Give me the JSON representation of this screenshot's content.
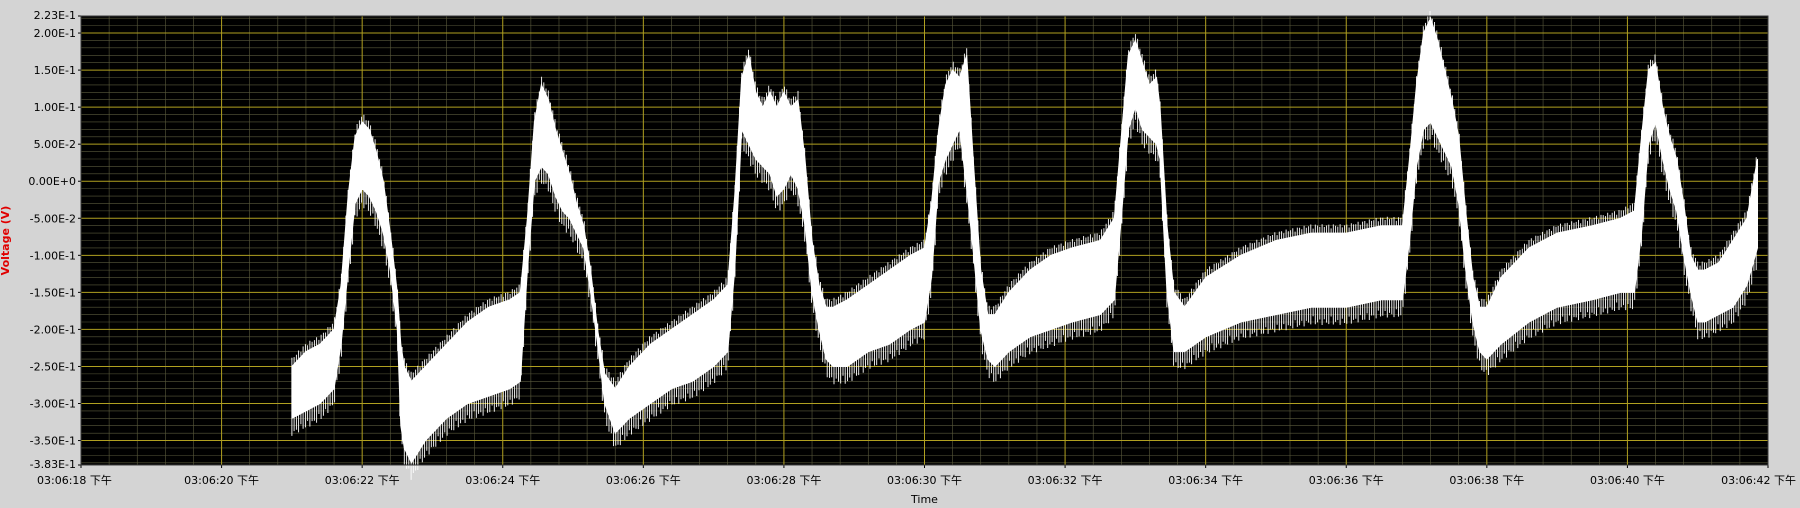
{
  "chart_data": {
    "type": "line",
    "title": "",
    "xlabel": "Time",
    "ylabel": "Voltage (V)",
    "ylim": [
      -0.383,
      0.223
    ],
    "xlim": [
      "03:06:18 下午",
      "03:06:42 下午"
    ],
    "grid": true,
    "legend": "none",
    "y_ticks": [
      {
        "value": 0.223,
        "label": "2.23E-1"
      },
      {
        "value": 0.2,
        "label": "2.00E-1"
      },
      {
        "value": 0.15,
        "label": "1.50E-1"
      },
      {
        "value": 0.1,
        "label": "1.00E-1"
      },
      {
        "value": 0.05,
        "label": "5.00E-2"
      },
      {
        "value": 0.0,
        "label": "0.00E+0"
      },
      {
        "value": -0.05,
        "label": "-5.00E-2"
      },
      {
        "value": -0.1,
        "label": "-1.00E-1"
      },
      {
        "value": -0.15,
        "label": "-1.50E-1"
      },
      {
        "value": -0.2,
        "label": "-2.00E-1"
      },
      {
        "value": -0.25,
        "label": "-2.50E-1"
      },
      {
        "value": -0.3,
        "label": "-3.00E-1"
      },
      {
        "value": -0.35,
        "label": "-3.50E-1"
      },
      {
        "value": -0.383,
        "label": "-3.83E-1"
      }
    ],
    "x_ticks": [
      {
        "value": 0,
        "label": "03:06:18 下午"
      },
      {
        "value": 2,
        "label": "03:06:20 下午"
      },
      {
        "value": 4,
        "label": "03:06:22 下午"
      },
      {
        "value": 6,
        "label": "03:06:24 下午"
      },
      {
        "value": 8,
        "label": "03:06:26 下午"
      },
      {
        "value": 10,
        "label": "03:06:28 下午"
      },
      {
        "value": 12,
        "label": "03:06:30 下午"
      },
      {
        "value": 14,
        "label": "03:06:32 下午"
      },
      {
        "value": 16,
        "label": "03:06:34 下午"
      },
      {
        "value": 18,
        "label": "03:06:36 下午"
      },
      {
        "value": 20,
        "label": "03:06:38 下午"
      },
      {
        "value": 22,
        "label": "03:06:40 下午"
      },
      {
        "value": 24,
        "label": "03:06:42 下午"
      }
    ],
    "series": [
      {
        "points": [
          [
            3.0,
            -0.25,
            -0.32
          ],
          [
            3.2,
            -0.23,
            -0.31
          ],
          [
            3.4,
            -0.22,
            -0.3
          ],
          [
            3.6,
            -0.2,
            -0.28
          ],
          [
            3.7,
            -0.14,
            -0.22
          ],
          [
            3.8,
            -0.02,
            -0.12
          ],
          [
            3.9,
            0.06,
            -0.03
          ],
          [
            4.0,
            0.08,
            -0.01
          ],
          [
            4.1,
            0.07,
            -0.02
          ],
          [
            4.2,
            0.04,
            -0.04
          ],
          [
            4.3,
            0.0,
            -0.07
          ],
          [
            4.4,
            -0.07,
            -0.12
          ],
          [
            4.5,
            -0.15,
            -0.2
          ],
          [
            4.55,
            -0.22,
            -0.33
          ],
          [
            4.6,
            -0.25,
            -0.36
          ],
          [
            4.7,
            -0.27,
            -0.38
          ],
          [
            4.9,
            -0.25,
            -0.35
          ],
          [
            5.2,
            -0.22,
            -0.32
          ],
          [
            5.5,
            -0.19,
            -0.3
          ],
          [
            5.8,
            -0.17,
            -0.29
          ],
          [
            6.1,
            -0.16,
            -0.28
          ],
          [
            6.25,
            -0.15,
            -0.27
          ],
          [
            6.35,
            -0.05,
            -0.12
          ],
          [
            6.45,
            0.08,
            0.0
          ],
          [
            6.55,
            0.13,
            0.02
          ],
          [
            6.65,
            0.11,
            0.01
          ],
          [
            6.75,
            0.07,
            -0.02
          ],
          [
            6.85,
            0.04,
            -0.04
          ],
          [
            6.95,
            0.01,
            -0.05
          ],
          [
            7.05,
            -0.03,
            -0.07
          ],
          [
            7.15,
            -0.06,
            -0.09
          ],
          [
            7.25,
            -0.12,
            -0.15
          ],
          [
            7.35,
            -0.2,
            -0.22
          ],
          [
            7.45,
            -0.26,
            -0.3
          ],
          [
            7.6,
            -0.28,
            -0.34
          ],
          [
            7.8,
            -0.25,
            -0.32
          ],
          [
            8.1,
            -0.22,
            -0.3
          ],
          [
            8.4,
            -0.2,
            -0.28
          ],
          [
            8.7,
            -0.18,
            -0.27
          ],
          [
            9.0,
            -0.16,
            -0.25
          ],
          [
            9.2,
            -0.14,
            -0.23
          ],
          [
            9.3,
            -0.02,
            -0.12
          ],
          [
            9.4,
            0.14,
            0.07
          ],
          [
            9.5,
            0.17,
            0.05
          ],
          [
            9.6,
            0.12,
            0.03
          ],
          [
            9.7,
            0.1,
            0.02
          ],
          [
            9.8,
            0.12,
            0.01
          ],
          [
            9.9,
            0.1,
            -0.02
          ],
          [
            10.0,
            0.12,
            -0.01
          ],
          [
            10.1,
            0.1,
            0.01
          ],
          [
            10.2,
            0.11,
            -0.01
          ],
          [
            10.3,
            0.03,
            -0.06
          ],
          [
            10.4,
            -0.08,
            -0.15
          ],
          [
            10.5,
            -0.14,
            -0.2
          ],
          [
            10.6,
            -0.17,
            -0.24
          ],
          [
            10.7,
            -0.17,
            -0.25
          ],
          [
            10.9,
            -0.16,
            -0.25
          ],
          [
            11.2,
            -0.14,
            -0.23
          ],
          [
            11.5,
            -0.12,
            -0.22
          ],
          [
            11.8,
            -0.1,
            -0.2
          ],
          [
            12.0,
            -0.09,
            -0.19
          ],
          [
            12.1,
            -0.03,
            -0.13
          ],
          [
            12.2,
            0.07,
            0.0
          ],
          [
            12.3,
            0.13,
            0.03
          ],
          [
            12.4,
            0.15,
            0.05
          ],
          [
            12.5,
            0.14,
            0.07
          ],
          [
            12.6,
            0.17,
            -0.01
          ],
          [
            12.7,
            0.02,
            -0.1
          ],
          [
            12.8,
            -0.12,
            -0.2
          ],
          [
            12.9,
            -0.18,
            -0.24
          ],
          [
            13.0,
            -0.18,
            -0.25
          ],
          [
            13.2,
            -0.15,
            -0.23
          ],
          [
            13.5,
            -0.12,
            -0.21
          ],
          [
            13.8,
            -0.1,
            -0.2
          ],
          [
            14.1,
            -0.09,
            -0.19
          ],
          [
            14.5,
            -0.08,
            -0.18
          ],
          [
            14.7,
            -0.05,
            -0.16
          ],
          [
            14.8,
            0.06,
            -0.05
          ],
          [
            14.9,
            0.17,
            0.07
          ],
          [
            15.0,
            0.19,
            0.1
          ],
          [
            15.1,
            0.16,
            0.07
          ],
          [
            15.2,
            0.13,
            0.06
          ],
          [
            15.3,
            0.14,
            0.05
          ],
          [
            15.35,
            0.1,
            0.03
          ],
          [
            15.45,
            -0.06,
            -0.15
          ],
          [
            15.55,
            -0.15,
            -0.23
          ],
          [
            15.7,
            -0.17,
            -0.23
          ],
          [
            16.0,
            -0.13,
            -0.21
          ],
          [
            16.5,
            -0.1,
            -0.19
          ],
          [
            17.0,
            -0.08,
            -0.18
          ],
          [
            17.5,
            -0.07,
            -0.17
          ],
          [
            18.0,
            -0.07,
            -0.17
          ],
          [
            18.5,
            -0.06,
            -0.16
          ],
          [
            18.8,
            -0.06,
            -0.16
          ],
          [
            18.9,
            0.03,
            -0.08
          ],
          [
            19.0,
            0.13,
            0.02
          ],
          [
            19.1,
            0.2,
            0.07
          ],
          [
            19.2,
            0.22,
            0.08
          ],
          [
            19.3,
            0.19,
            0.06
          ],
          [
            19.4,
            0.15,
            0.04
          ],
          [
            19.5,
            0.11,
            0.02
          ],
          [
            19.6,
            0.06,
            -0.03
          ],
          [
            19.7,
            -0.04,
            -0.12
          ],
          [
            19.8,
            -0.13,
            -0.19
          ],
          [
            19.9,
            -0.17,
            -0.23
          ],
          [
            20.0,
            -0.17,
            -0.24
          ],
          [
            20.2,
            -0.13,
            -0.22
          ],
          [
            20.6,
            -0.09,
            -0.19
          ],
          [
            21.0,
            -0.07,
            -0.17
          ],
          [
            21.5,
            -0.06,
            -0.16
          ],
          [
            21.9,
            -0.05,
            -0.15
          ],
          [
            22.1,
            -0.04,
            -0.15
          ],
          [
            22.2,
            0.06,
            -0.07
          ],
          [
            22.3,
            0.15,
            0.05
          ],
          [
            22.4,
            0.16,
            0.08
          ],
          [
            22.5,
            0.1,
            0.03
          ],
          [
            22.6,
            0.06,
            -0.01
          ],
          [
            22.7,
            0.03,
            -0.04
          ],
          [
            22.8,
            -0.03,
            -0.1
          ],
          [
            22.9,
            -0.1,
            -0.15
          ],
          [
            23.0,
            -0.12,
            -0.19
          ],
          [
            23.1,
            -0.12,
            -0.19
          ],
          [
            23.3,
            -0.11,
            -0.18
          ],
          [
            23.5,
            -0.08,
            -0.17
          ],
          [
            23.7,
            -0.05,
            -0.14
          ],
          [
            23.85,
            0.03,
            -0.09
          ]
        ]
      }
    ]
  }
}
